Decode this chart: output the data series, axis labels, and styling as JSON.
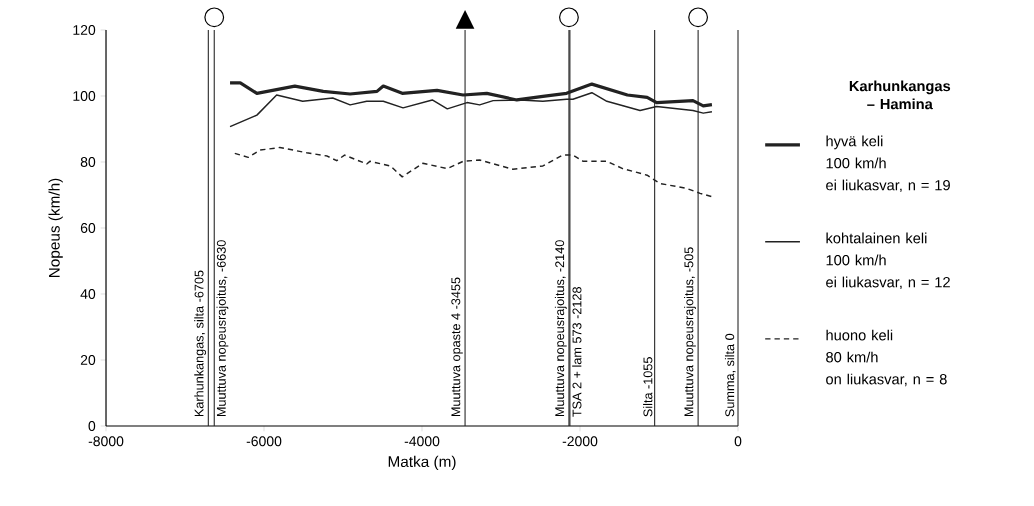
{
  "chart_data": {
    "type": "line",
    "legend_title": "Karhunkangas – Hamina",
    "xlabel": "Matka (m)",
    "ylabel": "Nopeus (km/h)",
    "xlim": [
      -8000,
      0
    ],
    "ylim": [
      0,
      120
    ],
    "xticks": [
      -8000,
      -6000,
      -4000,
      -2000,
      0
    ],
    "yticks": [
      0,
      20,
      40,
      60,
      80,
      100,
      120
    ],
    "legend": "right",
    "marker": "none",
    "series": [
      {
        "name": "hyvä keli\n100 km/h\nei liukasvar, n = 19",
        "color": "#222222",
        "line_style": "solid",
        "x": [
          -6430,
          -6300,
          -6090,
          -5610,
          -5250,
          -4910,
          -4570,
          -4490,
          -4250,
          -3810,
          -3480,
          -3180,
          -2800,
          -2470,
          -2170,
          -1850,
          -1400,
          -1150,
          -1030,
          -570,
          -440,
          -330
        ],
        "values": [
          104,
          104,
          100.8,
          103,
          101.4,
          100.6,
          101.4,
          103,
          100.8,
          101.7,
          100.3,
          100.8,
          98.8,
          99.9,
          100.8,
          103.6,
          100.3,
          99.6,
          98,
          98.6,
          97,
          97.4
        ]
      },
      {
        "name": "kohtalainen keli\n100 km/h\nei liukasvar, n = 12",
        "color": "#222222",
        "line_style": "solid",
        "x": [
          -6430,
          -6090,
          -5840,
          -5510,
          -5130,
          -4910,
          -4700,
          -4490,
          -4240,
          -3870,
          -3680,
          -3430,
          -3270,
          -3100,
          -2760,
          -2470,
          -2170,
          -2090,
          -1850,
          -1660,
          -1240,
          -1030,
          -570,
          -440,
          -330
        ],
        "values": [
          90.7,
          94.2,
          100.3,
          98.4,
          99.4,
          97.3,
          98.4,
          98.4,
          96.4,
          98.8,
          96.1,
          98,
          97.3,
          98.6,
          98.8,
          98.4,
          99,
          99,
          101,
          98.4,
          95.6,
          96.8,
          95.6,
          94.8,
          95.2
        ]
      },
      {
        "name": "huono keli\n80 km/h\non liukasvar, n = 8",
        "color": "#222222",
        "line_style": "dashed",
        "x": [
          -6370,
          -6200,
          -6050,
          -5800,
          -5460,
          -5200,
          -5080,
          -4980,
          -4700,
          -4660,
          -4400,
          -4250,
          -3990,
          -3680,
          -3480,
          -3270,
          -2850,
          -2470,
          -2220,
          -2090,
          -1960,
          -1660,
          -1460,
          -1150,
          -990,
          -650,
          -480,
          -330
        ],
        "values": [
          82.6,
          81.4,
          83.6,
          84.4,
          82.8,
          81.8,
          80.4,
          82.1,
          79.4,
          80.2,
          78.8,
          75.5,
          79.6,
          78,
          80.2,
          80.6,
          77.8,
          78.8,
          82.1,
          82.1,
          80.2,
          80.2,
          78,
          76,
          73.5,
          72,
          70.5,
          69.5
        ]
      }
    ],
    "ref_lines": [
      {
        "axis": "x",
        "value": -6705,
        "label": "Karhunkangas, silta -6705",
        "color": "#222222"
      },
      {
        "axis": "x",
        "value": -6630,
        "label": "Muuttuva nopeusrajoitus, -6630",
        "color": "#222222"
      },
      {
        "axis": "x",
        "value": -3455,
        "label": "Muuttuva opaste 4 -3455",
        "color": "#222222"
      },
      {
        "axis": "x",
        "value": -2140,
        "label": "Muuttuva nopeusrajoitus, -2140",
        "color": "#222222"
      },
      {
        "axis": "x",
        "value": -2128,
        "label": "TSA 2 + lam 573 -2128",
        "color": "#222222"
      },
      {
        "axis": "x",
        "value": -1055,
        "label": "Silta -1055",
        "color": "#222222"
      },
      {
        "axis": "x",
        "value": -505,
        "label": "Muuttuva nopeusrajoitus, -505",
        "color": "#222222"
      },
      {
        "axis": "x",
        "value": 0,
        "label": "Summa, silta 0",
        "color": "#222222"
      }
    ]
  }
}
